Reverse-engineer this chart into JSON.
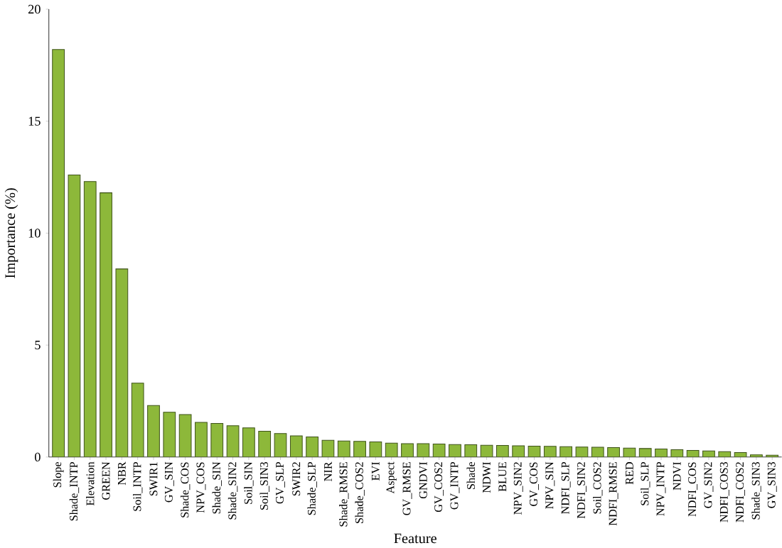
{
  "chart_data": {
    "type": "bar",
    "xlabel": "Feature",
    "ylabel": "Importance (%)",
    "categories": [
      "Slope",
      "Shade_INTP",
      "Elevation",
      "GREEN",
      "NBR",
      "Soil_INTP",
      "SWIR1",
      "GV_SIN",
      "Shade_COS",
      "NPV_COS",
      "Shade_SIN",
      "Shade_SIN2",
      "Soil_SIN",
      "Soil_SIN3",
      "GV_SLP",
      "SWIR2",
      "Shade_SLP",
      "NIR",
      "Shade_RMSE",
      "Shade_COS2",
      "EVI",
      "Aspect",
      "GV_RMSE",
      "GNDVI",
      "GV_COS2",
      "GV_INTP",
      "Shade",
      "NDWI",
      "BLUE",
      "NPV_SIN2",
      "GV_COS",
      "NPV_SIN",
      "NDFI_SLP",
      "NDFI_SIN2",
      "Soil_COS2",
      "NDFI_RMSE",
      "RED",
      "Soil_SLP",
      "NPV_INTP",
      "NDVI",
      "NDFI_COS",
      "GV_SIN2",
      "NDFI_COS3",
      "NDFI_COS2",
      "Shade_SIN3",
      "GV_SIN3"
    ],
    "values": [
      18.2,
      12.6,
      12.3,
      11.8,
      8.4,
      3.3,
      2.3,
      2.0,
      1.9,
      1.55,
      1.5,
      1.4,
      1.3,
      1.15,
      1.05,
      0.95,
      0.9,
      0.75,
      0.72,
      0.7,
      0.68,
      0.62,
      0.6,
      0.6,
      0.58,
      0.56,
      0.55,
      0.53,
      0.52,
      0.5,
      0.49,
      0.48,
      0.46,
      0.45,
      0.44,
      0.42,
      0.4,
      0.38,
      0.36,
      0.33,
      0.3,
      0.27,
      0.24,
      0.2,
      0.1,
      0.08
    ],
    "color": "#8db83a",
    "ylim": [
      0,
      20
    ],
    "yticks": [
      0,
      5,
      10,
      15,
      20
    ],
    "grid": false
  }
}
